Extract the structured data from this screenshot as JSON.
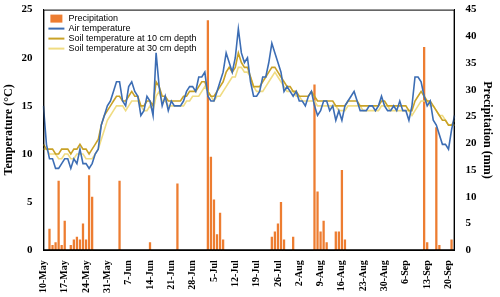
{
  "chart_data": {
    "type": "bar",
    "y_label": "Temperature (°C)",
    "y2_label": "Precipitation (mm)",
    "categories": [
      "10-May",
      null,
      null,
      null,
      null,
      null,
      null,
      "17-May",
      null,
      null,
      null,
      null,
      null,
      null,
      "24-May",
      null,
      null,
      null,
      null,
      null,
      null,
      "31-May",
      null,
      null,
      null,
      null,
      null,
      null,
      "7-Jun",
      null,
      null,
      null,
      null,
      null,
      null,
      "14-Jun",
      null,
      null,
      null,
      null,
      null,
      null,
      "21-Jun",
      null,
      null,
      null,
      null,
      null,
      null,
      "28-Jun",
      null,
      null,
      null,
      null,
      null,
      null,
      "5-Jul",
      null,
      null,
      null,
      null,
      null,
      null,
      "12-Jul",
      null,
      null,
      null,
      null,
      null,
      null,
      "19-Jul",
      null,
      null,
      null,
      null,
      null,
      null,
      "26-Jul",
      null,
      null,
      null,
      null,
      null,
      null,
      "2-Aug",
      null,
      null,
      null,
      null,
      null,
      null,
      "9-Aug",
      null,
      null,
      null,
      null,
      null,
      null,
      "16-Aug",
      null,
      null,
      null,
      null,
      null,
      null,
      "23-Aug",
      null,
      null,
      null,
      null,
      null,
      null,
      "30-Aug",
      null,
      null,
      null,
      null,
      null,
      null,
      "6-Sep",
      null,
      null,
      null,
      null,
      null,
      null,
      "13-Sep",
      null,
      null,
      null,
      null,
      null,
      null,
      "20-Sep",
      null,
      null
    ],
    "series": [
      {
        "name": "Precipitation",
        "type": "bar",
        "axis": "y2",
        "color": "#ed7d31",
        "values": [
          0,
          0,
          4,
          1,
          1.5,
          13,
          1,
          5.5,
          0,
          1,
          2,
          2.5,
          2,
          5,
          2,
          14,
          10,
          0,
          0,
          0,
          0,
          0,
          0,
          0,
          0,
          13,
          0,
          0,
          0,
          0,
          0,
          0,
          0,
          0,
          0,
          1.5,
          0,
          0,
          0,
          0,
          0,
          0,
          0,
          0,
          12.5,
          0,
          0,
          0,
          0,
          0,
          0,
          0,
          0,
          0,
          43,
          17.5,
          9.5,
          3,
          7,
          2,
          0,
          0,
          0,
          0,
          0,
          0,
          0,
          0,
          0,
          0,
          0,
          0,
          0,
          0,
          0,
          2.5,
          3.5,
          5,
          9,
          2,
          0,
          0,
          2.5,
          0,
          0,
          0,
          0,
          0,
          0,
          31,
          11,
          3.5,
          5.5,
          1.5,
          0,
          0,
          3.5,
          3.5,
          15,
          2,
          0,
          0,
          0,
          0,
          0,
          0,
          0,
          0,
          0,
          0,
          0,
          0,
          0,
          0,
          0,
          0,
          0,
          0,
          0,
          0,
          0,
          0,
          0,
          0,
          0,
          38,
          1.5,
          0,
          0,
          23,
          1,
          0,
          0,
          0,
          2,
          0
        ]
      },
      {
        "name": "Air temperature",
        "type": "line",
        "color": "#3c6db4",
        "values": [
          15,
          11,
          9.5,
          9.5,
          8.5,
          8.5,
          9,
          9.5,
          9.5,
          8.5,
          9.5,
          9,
          10.5,
          9,
          9,
          8.5,
          9,
          10,
          10.5,
          13,
          14,
          15,
          15.5,
          16.5,
          17.5,
          17.5,
          15.5,
          15,
          17,
          17.5,
          16.5,
          16,
          14,
          14.5,
          16,
          15.5,
          14,
          20.5,
          17,
          15,
          16,
          14.5,
          15.5,
          15,
          15,
          15,
          15.5,
          16.5,
          17,
          17,
          16.5,
          18,
          18,
          18.5,
          16,
          15.5,
          15.5,
          16.5,
          17.5,
          18.5,
          20.5,
          19.5,
          18.5,
          20,
          23,
          20.5,
          19.5,
          20,
          17.5,
          16,
          16,
          16.5,
          18,
          18,
          19.5,
          21.5,
          20.5,
          19.5,
          18.5,
          16.5,
          17,
          16.5,
          16,
          16.5,
          15.5,
          15.5,
          15,
          16,
          16.5,
          15,
          14,
          14.5,
          15.5,
          15.5,
          14.5,
          15,
          13.5,
          14.5,
          13.5,
          15,
          15.5,
          16,
          16.5,
          15.5,
          14.5,
          14.5,
          14.5,
          15,
          15,
          14.5,
          15,
          16,
          15,
          14.5,
          14.5,
          15,
          14.5,
          15.5,
          14.5,
          14.5,
          13.5,
          15,
          18,
          18,
          17.5,
          16,
          15,
          15.5,
          13.5,
          13,
          12,
          11,
          11,
          10.5,
          12.5,
          14
        ]
      },
      {
        "name": "Soil temperature at 10 cm depth",
        "type": "line",
        "color": "#c9a227",
        "values": [
          11,
          10.5,
          10.5,
          10.5,
          10,
          10,
          10.5,
          10.5,
          10.5,
          10,
          10.5,
          10.5,
          11,
          10.5,
          10.5,
          10,
          10.5,
          11,
          11.5,
          13,
          14,
          14.5,
          15,
          15.5,
          16,
          16,
          15.5,
          15.5,
          16,
          16.5,
          16,
          16,
          15,
          15,
          15.5,
          15.5,
          15,
          17.5,
          17,
          16,
          16,
          15.5,
          15.5,
          15.5,
          15.5,
          15.5,
          16,
          16,
          16.5,
          16.5,
          16.5,
          17,
          17.5,
          17.5,
          16.5,
          16,
          16,
          16.5,
          17,
          17.5,
          18.5,
          19,
          18.5,
          19,
          20.5,
          19.5,
          19,
          19,
          18,
          17,
          17,
          17,
          17.5,
          18,
          18.5,
          19,
          19,
          18.5,
          18,
          17.5,
          17,
          17,
          16.5,
          16.5,
          16,
          16,
          16,
          16,
          16.5,
          16,
          15.5,
          15.5,
          15.5,
          15.5,
          15.5,
          15.5,
          15,
          15,
          15,
          15,
          15.5,
          15.5,
          15.5,
          15.5,
          15,
          15,
          15,
          15,
          15,
          15,
          15,
          15.5,
          15.5,
          15,
          15,
          15,
          15,
          15,
          15,
          15,
          14.5,
          14.5,
          15.5,
          16,
          16.5,
          16,
          15.5,
          15.5,
          15,
          14.5,
          14,
          13.5,
          13.5,
          13,
          13,
          13.5
        ]
      },
      {
        "name": "Soil temperature at 30 cm depth",
        "type": "line",
        "color": "#f0dc82",
        "values": [
          10.5,
          10.5,
          10,
          10,
          10,
          9.5,
          9.5,
          10,
          10,
          9.5,
          9.5,
          10,
          10,
          10,
          9.5,
          9.5,
          9.5,
          10,
          10.5,
          11.5,
          12.5,
          13.5,
          14,
          14.5,
          15,
          15,
          15,
          14.5,
          15,
          15.5,
          15.5,
          15.5,
          15,
          14.5,
          14.5,
          15,
          14.5,
          16,
          16.5,
          15.5,
          15.5,
          15,
          15,
          15,
          15,
          15,
          15,
          15.5,
          15.5,
          16,
          16,
          16,
          16.5,
          17,
          16.5,
          16,
          15.5,
          16,
          16,
          16.5,
          17,
          17.5,
          18,
          18,
          19,
          19,
          18.5,
          18.5,
          18,
          17,
          16.5,
          16.5,
          16.5,
          17,
          17.5,
          18,
          18.5,
          18,
          17.5,
          17,
          16.5,
          16.5,
          16.5,
          16,
          16,
          15.5,
          15.5,
          15.5,
          15.5,
          15.5,
          15,
          15,
          15,
          15,
          15,
          15,
          15,
          14.5,
          14.5,
          14.5,
          15,
          15,
          15,
          15,
          15,
          14.5,
          14.5,
          14.5,
          14.5,
          14.5,
          14.5,
          15,
          15,
          15,
          14.5,
          14.5,
          14.5,
          14.5,
          14.5,
          14.5,
          14.5,
          14,
          14.5,
          15,
          15.5,
          15.5,
          15.5,
          15,
          15,
          14.5,
          14,
          14,
          13.5,
          13,
          13,
          13
        ]
      }
    ],
    "ylim": [
      0,
      25
    ],
    "yticks": [
      0,
      5,
      10,
      15,
      20,
      25
    ],
    "y2lim": [
      0,
      45
    ],
    "y2ticks": [
      0,
      5,
      10,
      15,
      20,
      25,
      30,
      35,
      40,
      45
    ],
    "grid": false,
    "legend": "upper left"
  }
}
